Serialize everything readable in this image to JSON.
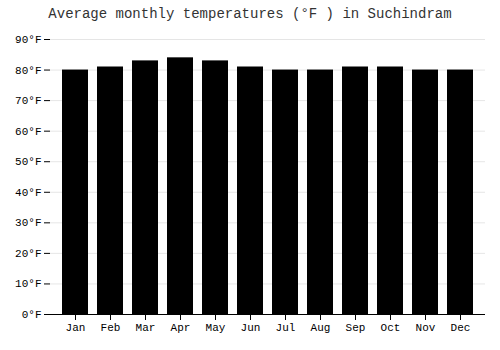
{
  "chart_data": {
    "type": "bar",
    "title": "Average monthly temperatures (°F ) in Suchindram",
    "categories": [
      "Jan",
      "Feb",
      "Mar",
      "Apr",
      "May",
      "Jun",
      "Jul",
      "Aug",
      "Sep",
      "Oct",
      "Nov",
      "Dec"
    ],
    "values": [
      80,
      81,
      83,
      84,
      83,
      81,
      80,
      80,
      81,
      81,
      80,
      80
    ],
    "ylim": [
      0,
      90
    ],
    "yticks": [
      {
        "value": 0,
        "label": "0°F"
      },
      {
        "value": 10,
        "label": "10°F"
      },
      {
        "value": 20,
        "label": "20°F"
      },
      {
        "value": 30,
        "label": "30°F"
      },
      {
        "value": 40,
        "label": "40°F"
      },
      {
        "value": 50,
        "label": "50°F"
      },
      {
        "value": 60,
        "label": "60°F"
      },
      {
        "value": 70,
        "label": "70°F"
      },
      {
        "value": 80,
        "label": "80°F"
      },
      {
        "value": 90,
        "label": "90°F"
      }
    ],
    "grid": true
  }
}
